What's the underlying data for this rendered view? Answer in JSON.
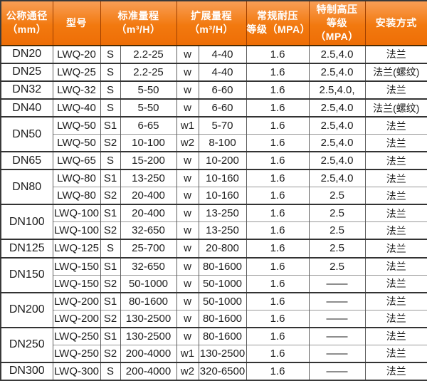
{
  "colors": {
    "header_bg_top": "#f99e55",
    "header_bg_bottom": "#ee6e06",
    "header_text": "#ffffff",
    "header_border": "#a04000",
    "body_text": "#1c1c1c",
    "grid_line": "#5e5e5e",
    "group_line": "#333333",
    "outer_border": "#3a3a3a"
  },
  "chart_data": {
    "type": "table",
    "title": "",
    "legend_position": "none",
    "grid": true,
    "columns": [
      {
        "label": "公称通径（mm）",
        "lines": [
          "公称通径",
          "（mm）"
        ],
        "colspan": 1
      },
      {
        "label": "型号",
        "lines": [
          "型号"
        ],
        "colspan": 1
      },
      {
        "label": "标准量程（m³/H）",
        "lines": [
          "标准量程",
          "（m³/H）"
        ],
        "colspan": 2
      },
      {
        "label": "扩展量程（m³/H）",
        "lines": [
          "扩展量程",
          "（m³/H）"
        ],
        "colspan": 2
      },
      {
        "label": "常规耐压等级（MPA）",
        "lines": [
          "常规耐压",
          "等级（MPA）"
        ],
        "colspan": 1
      },
      {
        "label": "特制高压等级（MPA）",
        "lines": [
          "特制高压",
          "等级（MPA）"
        ],
        "colspan": 1
      },
      {
        "label": "安装方式",
        "lines": [
          "安装方式"
        ],
        "colspan": 1
      }
    ],
    "groups": [
      {
        "dn": "DN20",
        "rows": [
          [
            "LWQ-20",
            "S",
            "2.2-25",
            "w",
            "4-40",
            "1.6",
            "2.5,4.0",
            "法兰"
          ]
        ]
      },
      {
        "dn": "DN25",
        "rows": [
          [
            "LWQ-25",
            "S",
            "2.2-25",
            "w",
            "4-40",
            "1.6",
            "2.5,4.0",
            "法兰(螺纹)"
          ]
        ]
      },
      {
        "dn": "DN32",
        "rows": [
          [
            "LWQ-32",
            "S",
            "5-50",
            "w",
            "6-60",
            "1.6",
            "2.5,4.0,",
            "法兰"
          ]
        ]
      },
      {
        "dn": "DN40",
        "rows": [
          [
            "LWQ-40",
            "S",
            "5-50",
            "w",
            "6-60",
            "1.6",
            "2.5,4.0",
            "法兰(螺纹)"
          ]
        ]
      },
      {
        "dn": "DN50",
        "rows": [
          [
            "LWQ-50",
            "S1",
            "6-65",
            "w1",
            "5-70",
            "1.6",
            "2.5,4.0",
            "法兰"
          ],
          [
            "LWQ-50",
            "S2",
            "10-100",
            "w2",
            "8-100",
            "1.6",
            "2.5,4.0",
            "法兰"
          ]
        ]
      },
      {
        "dn": "DN65",
        "rows": [
          [
            "LWQ-65",
            "S",
            "15-200",
            "w",
            "10-200",
            "1.6",
            "2.5,4.0",
            "法兰"
          ]
        ]
      },
      {
        "dn": "DN80",
        "rows": [
          [
            "LWQ-80",
            "S1",
            "13-250",
            "w",
            "10-160",
            "1.6",
            "2.5,4.0",
            "法兰"
          ],
          [
            "LWQ-80",
            "S2",
            "20-400",
            "w",
            "10-160",
            "1.6",
            "2.5",
            "法兰"
          ]
        ]
      },
      {
        "dn": "DN100",
        "rows": [
          [
            "LWQ-100",
            "S1",
            "20-400",
            "w",
            "13-250",
            "1.6",
            "2.5",
            "法兰"
          ],
          [
            "LWQ-100",
            "S2",
            "32-650",
            "w",
            "13-250",
            "1.6",
            "2.5",
            "法兰"
          ]
        ]
      },
      {
        "dn": "DN125",
        "rows": [
          [
            "LWQ-125",
            "S",
            "25-700",
            "w",
            "20-800",
            "1.6",
            "2.5",
            "法兰"
          ]
        ]
      },
      {
        "dn": "DN150",
        "rows": [
          [
            "LWQ-150",
            "S1",
            "32-650",
            "w",
            "80-1600",
            "1.6",
            "2.5",
            "法兰"
          ],
          [
            "LWQ-150",
            "S2",
            "50-1000",
            "w",
            "50-1000",
            "1.6",
            "——",
            "法兰"
          ]
        ]
      },
      {
        "dn": "DN200",
        "rows": [
          [
            "LWQ-200",
            "S1",
            "80-1600",
            "w",
            "50-1000",
            "1.6",
            "——",
            "法兰"
          ],
          [
            "LWQ-200",
            "S2",
            "130-2500",
            "w",
            "80-1600",
            "1.6",
            "——",
            "法兰"
          ]
        ]
      },
      {
        "dn": "DN250",
        "rows": [
          [
            "LWQ-250",
            "S1",
            "130-2500",
            "w",
            "80-1600",
            "1.6",
            "——",
            "法兰"
          ],
          [
            "LWQ-250",
            "S2",
            "200-4000",
            "w1",
            "130-2500",
            "1.6",
            "——",
            "法兰"
          ]
        ]
      },
      {
        "dn": "DN300",
        "rows": [
          [
            "LWQ-300",
            "S",
            "200-4000",
            "w2",
            "320-6500",
            "1.6",
            "——",
            "法兰"
          ]
        ]
      }
    ]
  }
}
